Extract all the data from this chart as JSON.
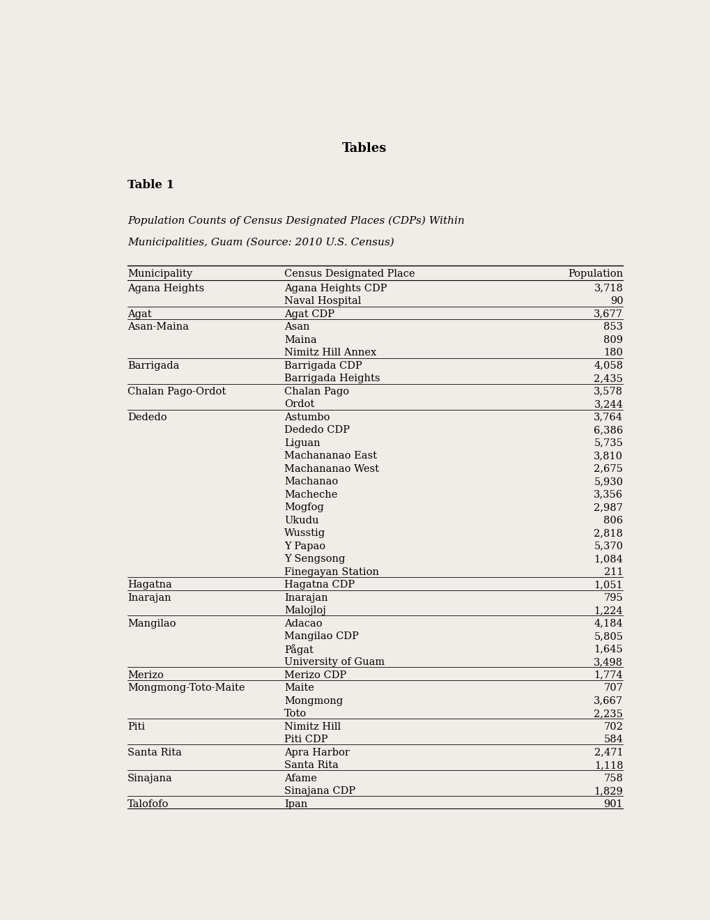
{
  "page_title": "Tables",
  "table_label": "Table 1",
  "table_caption_line1": "Population Counts of Census Designated Places (CDPs) Within",
  "table_caption_line2": "Municipalities, Guam (Source: 2010 U.S. Census)",
  "col_headers": [
    "Municipality",
    "Census Designated Place",
    "Population"
  ],
  "rows": [
    [
      "Agana Heights",
      "Agana Heights CDP",
      "3,718"
    ],
    [
      "",
      "Naval Hospital",
      "90"
    ],
    [
      "Agat",
      "Agat CDP",
      "3,677"
    ],
    [
      "Asan-Maina",
      "Asan",
      "853"
    ],
    [
      "",
      "Maina",
      "809"
    ],
    [
      "",
      "Nimitz Hill Annex",
      "180"
    ],
    [
      "Barrigada",
      "Barrigada CDP",
      "4,058"
    ],
    [
      "",
      "Barrigada Heights",
      "2,435"
    ],
    [
      "Chalan Pago-Ordot",
      "Chalan Pago",
      "3,578"
    ],
    [
      "",
      "Ordot",
      "3,244"
    ],
    [
      "Dededo",
      "Astumbo",
      "3,764"
    ],
    [
      "",
      "Dededo CDP",
      "6,386"
    ],
    [
      "",
      "Liguan",
      "5,735"
    ],
    [
      "",
      "Machananao East",
      "3,810"
    ],
    [
      "",
      "Machananao West",
      "2,675"
    ],
    [
      "",
      "Machanao",
      "5,930"
    ],
    [
      "",
      "Macheche",
      "3,356"
    ],
    [
      "",
      "Mogfog",
      "2,987"
    ],
    [
      "",
      "Ukudu",
      "806"
    ],
    [
      "",
      "Wusstig",
      "2,818"
    ],
    [
      "",
      "Y Papao",
      "5,370"
    ],
    [
      "",
      "Y Sengsong",
      "1,084"
    ],
    [
      "",
      "Finegayan Station",
      "211"
    ],
    [
      "Hagatna",
      "Hagatna CDP",
      "1,051"
    ],
    [
      "Inarajan",
      "Inarajan",
      "795"
    ],
    [
      "",
      "Malojloj",
      "1,224"
    ],
    [
      "Mangilao",
      "Adacao",
      "4,184"
    ],
    [
      "",
      "Mangilao CDP",
      "5,805"
    ],
    [
      "",
      "Pågat",
      "1,645"
    ],
    [
      "",
      "University of Guam",
      "3,498"
    ],
    [
      "Merizo",
      "Merizo CDP",
      "1,774"
    ],
    [
      "Mongmong-Toto-Maite",
      "Maite",
      "707"
    ],
    [
      "",
      "Mongmong",
      "3,667"
    ],
    [
      "",
      "Toto",
      "2,235"
    ],
    [
      "Piti",
      "Nimitz Hill",
      "702"
    ],
    [
      "",
      "Piti CDP",
      "584"
    ],
    [
      "Santa Rita",
      "Apra Harbor",
      "2,471"
    ],
    [
      "",
      "Santa Rita",
      "1,118"
    ],
    [
      "Sinajana",
      "Afame",
      "758"
    ],
    [
      "",
      "Sinajana CDP",
      "1,829"
    ],
    [
      "Talofofo",
      "Ipan",
      "901"
    ]
  ],
  "separator_rows": [
    2,
    3,
    6,
    8,
    10,
    23,
    24,
    26,
    30,
    31,
    34,
    36,
    38,
    40
  ],
  "bg_color": "#f0ede8",
  "text_color": "#000000",
  "line_color": "#000000"
}
